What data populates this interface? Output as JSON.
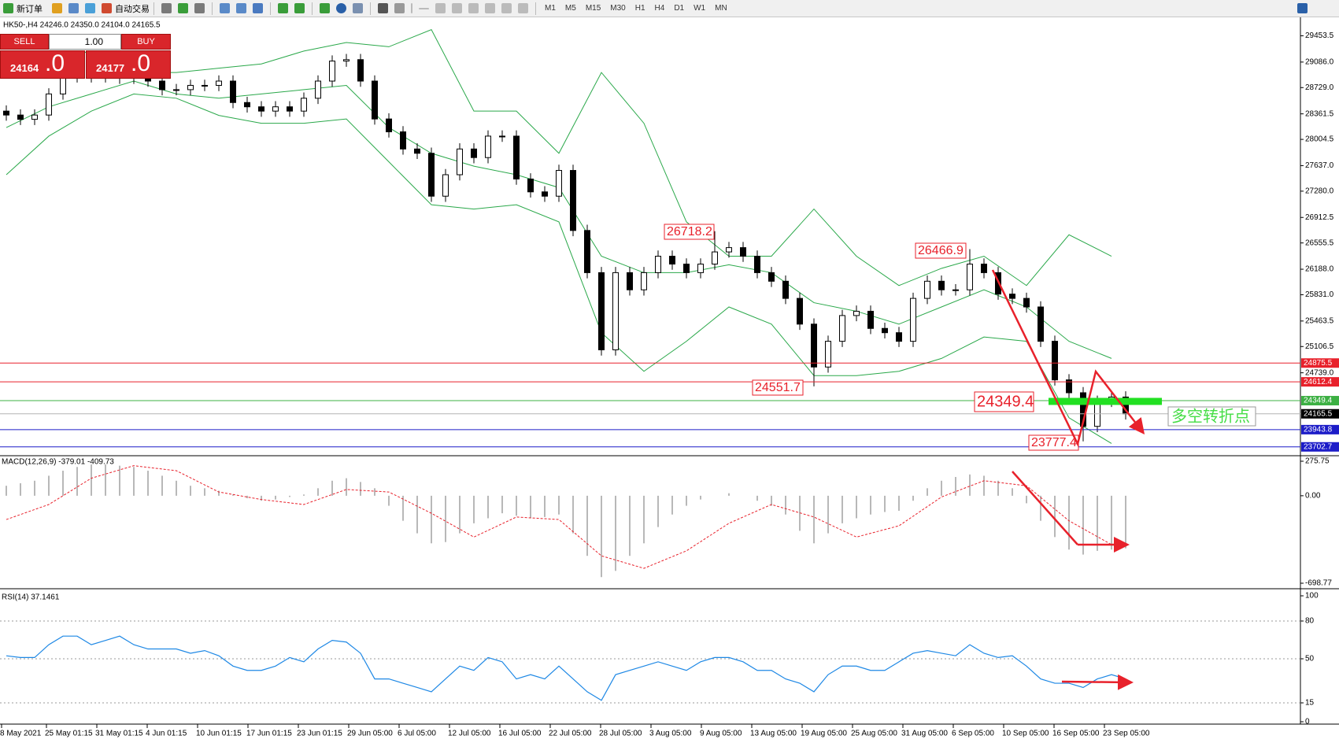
{
  "toolbar": {
    "new_order": "新订单",
    "auto_trading": "自动交易",
    "timeframes": [
      "M1",
      "M5",
      "M15",
      "M30",
      "H1",
      "H4",
      "D1",
      "W1",
      "MN"
    ]
  },
  "trade_panel": {
    "sell": "SELL",
    "buy": "BUY",
    "lot": "1.00",
    "bid_main": "24164",
    "bid_frac": ".0",
    "ask_main": "24177",
    "ask_frac": ".0"
  },
  "chart_data": {
    "type": "candlestick",
    "header": "HK50-,H4  24246.0 24350.0 24104.0 24165.5",
    "ylim": [
      23590,
      29690
    ],
    "yticks": [
      29453.5,
      {
        "value": 29086,
        "label": "29086.0"
      },
      {
        "value": 28729,
        "label": "28729.0"
      },
      28361.5,
      28004.5,
      {
        "value": 27637,
        "label": "27637.0"
      },
      {
        "value": 27280,
        "label": "27280.0"
      },
      26912.5,
      26555.5,
      {
        "value": 26188,
        "label": "26188.0"
      },
      {
        "value": 25831,
        "label": "25831.0"
      },
      25463.5,
      25106.5,
      {
        "value": 24739,
        "label": "24739.0"
      }
    ],
    "up_color": "#ffffff",
    "down_color": "#000000",
    "open": [
      28400,
      28345,
      28285,
      28345,
      28640,
      28880,
      28940,
      28880,
      28880,
      28860,
      28880,
      28820,
      28700,
      28700,
      28760,
      28760,
      28820,
      28520,
      28460,
      28400,
      28460,
      28400,
      28580,
      28820,
      29100,
      29120,
      28820,
      28290,
      28110,
      27870,
      27810,
      27210,
      27510,
      27870,
      27750,
      28050,
      28050,
      27450,
      27270,
      27210,
      27570,
      26730,
      26140,
      25060,
      26140,
      25900,
      26140,
      26370,
      26260,
      26140,
      26260,
      26430,
      26490,
      26370,
      26140,
      26020,
      25780,
      25420,
      24820,
      25180,
      25540,
      25600,
      25360,
      25300,
      25180,
      25780,
      26020,
      25900,
      25900,
      26260,
      26140,
      25840,
      25780,
      25660,
      25180,
      24640,
      24460,
      23990,
      24340,
      24400
    ],
    "high": [
      28480,
      28425,
      28425,
      28720,
      28960,
      29020,
      29020,
      28960,
      28960,
      28960,
      28960,
      28900,
      28780,
      28840,
      28840,
      28900,
      28900,
      28600,
      28540,
      28540,
      28540,
      28660,
      28900,
      29180,
      29200,
      29200,
      28900,
      28370,
      28190,
      27950,
      27890,
      27590,
      27950,
      27950,
      28130,
      28130,
      28130,
      27530,
      27350,
      27650,
      27650,
      26810,
      26220,
      26220,
      26220,
      26220,
      26450,
      26450,
      26340,
      26340,
      26720,
      26570,
      26570,
      26450,
      26220,
      26100,
      25860,
      25500,
      25260,
      25620,
      25680,
      25680,
      25440,
      25380,
      25860,
      26100,
      26100,
      25980,
      26470,
      26340,
      26220,
      25920,
      25860,
      25740,
      25260,
      24720,
      24540,
      24420,
      24480,
      24480
    ],
    "low": [
      28265,
      28205,
      28205,
      28265,
      28560,
      28800,
      28800,
      28800,
      28780,
      28780,
      28740,
      28620,
      28620,
      28620,
      28680,
      28680,
      28440,
      28380,
      28320,
      28320,
      28320,
      28320,
      28500,
      28740,
      29020,
      28740,
      28210,
      28030,
      27790,
      27730,
      27130,
      27130,
      27430,
      27670,
      27670,
      27970,
      27370,
      27190,
      27130,
      27130,
      26650,
      26060,
      24980,
      24980,
      25820,
      25820,
      26060,
      26180,
      26060,
      26060,
      26180,
      26350,
      26290,
      26060,
      25940,
      25700,
      25340,
      24550,
      24740,
      25100,
      25460,
      25280,
      25220,
      25100,
      25100,
      25700,
      25820,
      25820,
      25820,
      26060,
      25760,
      25700,
      25580,
      25100,
      24560,
      24380,
      23780,
      23910,
      24260,
      24085
    ],
    "close": [
      28345,
      28285,
      28345,
      28640,
      28880,
      28940,
      28880,
      28880,
      28860,
      28880,
      28820,
      28700,
      28700,
      28760,
      28760,
      28820,
      28520,
      28460,
      28400,
      28460,
      28400,
      28580,
      28820,
      29100,
      29120,
      28820,
      28290,
      28110,
      27870,
      27810,
      27210,
      27510,
      27870,
      27750,
      28050,
      28050,
      27450,
      27270,
      27210,
      27570,
      26730,
      26140,
      25060,
      26140,
      25900,
      26140,
      26370,
      26260,
      26140,
      26260,
      26430,
      26490,
      26370,
      26140,
      26020,
      25780,
      25420,
      24820,
      25180,
      25540,
      25600,
      25360,
      25300,
      25180,
      25780,
      26020,
      25900,
      25900,
      26260,
      26140,
      25840,
      25780,
      25660,
      25180,
      24640,
      24460,
      23990,
      24340,
      24400,
      24165
    ],
    "bands": {
      "color": "#2aa84a",
      "upper": [
        29060,
        29120,
        29240,
        28940,
        28940,
        29000,
        29060,
        29240,
        29360,
        29300,
        29540,
        28400,
        28400,
        27810,
        28940,
        28230,
        26850,
        26370,
        26370,
        27030,
        26370,
        25960,
        26200,
        26370,
        25960,
        26670,
        26370
      ],
      "middle": [
        28170,
        28460,
        28640,
        28820,
        28640,
        28580,
        28640,
        28700,
        28760,
        28170,
        27810,
        27630,
        27510,
        27330,
        26370,
        26140,
        26140,
        26250,
        26140,
        25720,
        25600,
        25420,
        25660,
        25900,
        25660,
        25180,
        24940
      ],
      "lower": [
        27510,
        28050,
        28400,
        28640,
        28580,
        28340,
        28230,
        28230,
        28290,
        27690,
        27090,
        27030,
        27090,
        26850,
        25300,
        24760,
        25180,
        25660,
        25420,
        24700,
        24700,
        24760,
        24940,
        25240,
        25180,
        24110,
        23750
      ]
    },
    "levels": [
      {
        "value": 24875.5,
        "color": "#e8212b",
        "label_bg": "#e8212b"
      },
      {
        "value": 24612.4,
        "color": "#e8212b",
        "label_bg": "#e8212b"
      },
      {
        "value": 24349.4,
        "color": "#3cb043",
        "label_bg": "#3cb043"
      },
      {
        "value": 24165.5,
        "color": "#b4b4b4",
        "label_bg": "#000000"
      },
      {
        "value": 23943.8,
        "color": "#1c1cc8",
        "label_bg": "#1c1cc8"
      },
      {
        "value": 23702.7,
        "color": "#1c1cc8",
        "label_bg": "#1c1cc8"
      }
    ],
    "annotations": [
      "26718.2",
      "26466.9",
      "24551.7",
      "24349.4",
      "23777.4",
      "多空转折点"
    ],
    "x_labels": [
      "8 May 2021",
      "25 May 01:15",
      "31 May 01:15",
      "4 Jun 01:15",
      "10 Jun 01:15",
      "17 Jun 01:15",
      "23 Jun 01:15",
      "29 Jun 05:00",
      "6 Jul 05:00",
      "12 Jul 05:00",
      "16 Jul 05:00",
      "22 Jul 05:00",
      "28 Jul 05:00",
      "3 Aug 05:00",
      "9 Aug 05:00",
      "13 Aug 05:00",
      "19 Aug 05:00",
      "25 Aug 05:00",
      "31 Aug 05:00",
      "6 Sep 05:00",
      "10 Sep 05:00",
      "16 Sep 05:00",
      "23 Sep 05:00"
    ],
    "macd": {
      "title": "MACD(12,26,9) -379.01 -409.73",
      "ylim": [
        -698.77,
        275.75
      ],
      "yticks": [
        275.75,
        {
          "value": 0,
          "label": "0.00"
        },
        -698.77
      ],
      "hist_color": "#b8b8b8",
      "signal_color": "#e8212b",
      "histogram": [
        80,
        100,
        120,
        160,
        200,
        230,
        250,
        250,
        240,
        230,
        200,
        160,
        120,
        80,
        60,
        40,
        10,
        -20,
        -40,
        -30,
        -10,
        10,
        60,
        120,
        140,
        110,
        60,
        -80,
        -200,
        -300,
        -380,
        -370,
        -300,
        -220,
        -180,
        -140,
        -160,
        -180,
        -170,
        -150,
        -300,
        -480,
        -650,
        -600,
        -480,
        -380,
        -250,
        -150,
        -80,
        -30,
        0,
        20,
        0,
        -40,
        -80,
        -150,
        -280,
        -380,
        -300,
        -220,
        -180,
        -150,
        -130,
        -120,
        -40,
        60,
        120,
        150,
        170,
        160,
        120,
        60,
        -60,
        -200,
        -330,
        -430,
        -470,
        -440,
        -430,
        -420
      ],
      "signal": [
        -190,
        -70,
        140,
        240,
        200,
        30,
        -30,
        -70,
        50,
        30,
        -140,
        -330,
        -170,
        -190,
        -480,
        -580,
        -440,
        -220,
        -70,
        -170,
        -330,
        -240,
        -10,
        120,
        80,
        -200,
        -390
      ]
    },
    "rsi": {
      "title": "RSI(14) 37.1461",
      "ylim": [
        0,
        100
      ],
      "yticks": [
        100,
        80,
        50,
        15,
        0
      ],
      "color": "#1e88e5",
      "values": [
        52.4,
        51.0,
        51.0,
        61.2,
        68.0,
        68.0,
        61.2,
        64.6,
        68.0,
        61.2,
        57.8,
        57.8,
        57.8,
        54.4,
        56.5,
        52.4,
        44.2,
        40.8,
        40.8,
        44.2,
        51.0,
        47.6,
        57.8,
        64.6,
        63.3,
        54.4,
        34.0,
        34.0,
        30.6,
        27.2,
        23.8,
        34.0,
        44.2,
        40.8,
        51.0,
        47.6,
        34.0,
        37.4,
        34.0,
        44.2,
        34.0,
        23.8,
        17.0,
        37.4,
        40.8,
        44.2,
        47.6,
        44.2,
        40.8,
        47.6,
        51.0,
        51.0,
        47.6,
        40.8,
        40.8,
        34.0,
        30.6,
        23.8,
        37.4,
        44.2,
        44.2,
        40.8,
        40.8,
        47.6,
        54.4,
        56.5,
        54.4,
        52.4,
        61.2,
        54.4,
        51.0,
        52.4,
        44.2,
        34.0,
        30.6,
        30.6,
        27.2,
        34.0,
        37.4,
        34.0
      ]
    }
  }
}
